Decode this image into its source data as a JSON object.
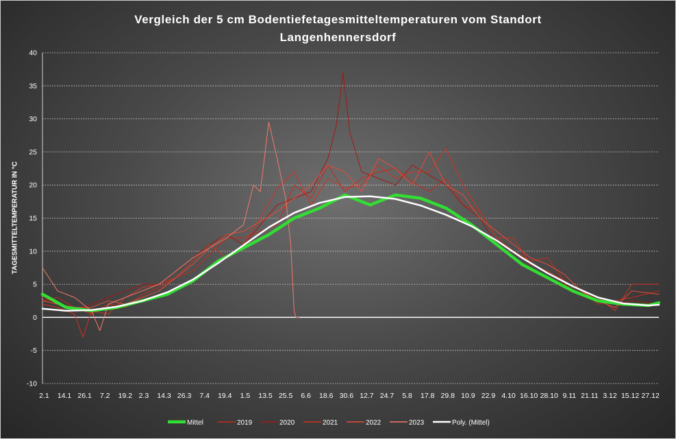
{
  "chart_data": {
    "type": "line",
    "title": "Vergleich der 5 cm Bodentiefetagesmitteltemperaturen vom Standort Langenhennersdorf",
    "title_lines": [
      "Vergleich der 5 cm Bodentiefetagesmitteltemperaturen vom Standort",
      "Langenhennersdorf"
    ],
    "ylabel": "TAGESMITTELTEMPERATUR IN °C",
    "xlabel": "",
    "ylim": [
      -10,
      40
    ],
    "yticks": [
      "-10",
      "-5",
      "0",
      "5",
      "10",
      "15",
      "20",
      "25",
      "30",
      "35",
      "40"
    ],
    "x_tick_labels": [
      "2.1",
      "14.1",
      "26.1",
      "7.2",
      "19.2",
      "2.3",
      "14.3",
      "26.3",
      "7.4",
      "19.4",
      "1.5",
      "13.5",
      "25.5",
      "6.6",
      "18.6",
      "30.6",
      "12.7",
      "24.7",
      "5.8",
      "17.8",
      "29.8",
      "10.9",
      "22.9",
      "4.10",
      "16.10",
      "28.10",
      "9.11",
      "21.11",
      "3.12",
      "15.12",
      "27.12"
    ],
    "x_tick_days": [
      2,
      14,
      26,
      38,
      50,
      61,
      73,
      85,
      97,
      109,
      121,
      133,
      145,
      157,
      169,
      181,
      193,
      205,
      217,
      229,
      241,
      253,
      265,
      277,
      289,
      301,
      313,
      325,
      337,
      349,
      361
    ],
    "xlim": [
      1,
      366
    ],
    "grid": true,
    "legend_position": "bottom",
    "series": [
      {
        "name": "Mittel",
        "color": "#33dd33",
        "width": 4.5,
        "x": [
          1,
          15,
          30,
          45,
          60,
          75,
          90,
          105,
          120,
          135,
          150,
          165,
          180,
          195,
          210,
          225,
          240,
          255,
          270,
          285,
          300,
          315,
          330,
          345,
          360,
          366
        ],
        "values": [
          3.5,
          1.5,
          1.0,
          1.5,
          2.5,
          3.5,
          5.5,
          8.5,
          10.5,
          12.5,
          15,
          16.5,
          18.5,
          17,
          18.5,
          18,
          16.5,
          14,
          11,
          8,
          6,
          4,
          2.5,
          2,
          1.8,
          2.2
        ]
      },
      {
        "name": "2019",
        "color": "#c62a1c",
        "width": 1,
        "x": [
          1,
          10,
          20,
          30,
          40,
          50,
          60,
          70,
          80,
          90,
          100,
          110,
          120,
          130,
          140,
          150,
          160,
          170,
          180,
          190,
          200,
          210,
          220,
          230,
          240,
          250,
          260,
          270,
          280,
          290,
          300,
          310,
          320,
          330,
          340,
          350,
          366
        ],
        "values": [
          2.5,
          3,
          1.5,
          0.5,
          2,
          1.5,
          3.5,
          4.5,
          6,
          7,
          9.5,
          12,
          12,
          13,
          14,
          20,
          18,
          23,
          19,
          21,
          22,
          22.5,
          20.5,
          19,
          21,
          17,
          16,
          12,
          10,
          8.5,
          9,
          5.5,
          4,
          2,
          2.5,
          3,
          4
        ]
      },
      {
        "name": "2020",
        "color": "#a31a12",
        "width": 1,
        "x": [
          1,
          10,
          20,
          30,
          40,
          50,
          60,
          70,
          80,
          90,
          100,
          110,
          120,
          130,
          140,
          150,
          160,
          170,
          175,
          179,
          183,
          190,
          200,
          210,
          220,
          230,
          240,
          250,
          260,
          270,
          280,
          290,
          300,
          310,
          320,
          330,
          340,
          350,
          366
        ],
        "values": [
          3,
          2,
          1,
          2,
          3,
          4,
          5,
          5,
          7,
          9,
          11,
          12.5,
          11,
          14,
          17,
          18,
          19,
          24,
          29,
          37,
          28,
          22,
          21,
          20,
          23,
          21.5,
          20,
          17,
          15,
          11,
          9,
          7.5,
          6,
          5,
          3.5,
          3,
          2,
          2.5,
          2
        ]
      },
      {
        "name": "2021",
        "color": "#d13222",
        "width": 1,
        "x": [
          1,
          10,
          20,
          25,
          30,
          40,
          50,
          60,
          70,
          80,
          90,
          100,
          110,
          120,
          130,
          140,
          150,
          160,
          170,
          180,
          190,
          200,
          210,
          220,
          230,
          240,
          250,
          260,
          270,
          280,
          290,
          300,
          310,
          320,
          330,
          340,
          350,
          366
        ],
        "values": [
          2,
          1.5,
          0.5,
          -3,
          1,
          0.5,
          3,
          4.5,
          5,
          6,
          8.5,
          11,
          9,
          11,
          15,
          19.5,
          22,
          17,
          21,
          19.5,
          20,
          23,
          21,
          22,
          22,
          25.5,
          20,
          16,
          12,
          12,
          8,
          7,
          5.5,
          4,
          3,
          1,
          5,
          5
        ]
      },
      {
        "name": "2022",
        "color": "#ea4a38",
        "width": 1,
        "x": [
          1,
          10,
          20,
          30,
          40,
          50,
          60,
          70,
          80,
          90,
          100,
          110,
          120,
          130,
          140,
          150,
          160,
          170,
          180,
          190,
          200,
          210,
          220,
          230,
          240,
          250,
          260,
          270,
          280,
          290,
          300,
          310,
          320,
          330,
          340,
          350,
          366
        ],
        "values": [
          2.5,
          2,
          1.5,
          1.5,
          2.5,
          2,
          3,
          4,
          6,
          8,
          10.5,
          12.5,
          13,
          14.5,
          16,
          18,
          20,
          23,
          22,
          19,
          24,
          22.5,
          20,
          25,
          20,
          18.5,
          15,
          13,
          11,
          9,
          8,
          6.5,
          4,
          2.5,
          1.5,
          4,
          3.5
        ]
      },
      {
        "name": "2023",
        "color": "#f47a6a",
        "width": 1,
        "x": [
          1,
          10,
          20,
          30,
          35,
          40,
          50,
          60,
          70,
          80,
          90,
          100,
          110,
          120,
          126,
          130,
          135,
          140,
          145,
          148,
          150,
          151,
          153
        ],
        "values": [
          7.5,
          4,
          3,
          1,
          -2,
          2,
          3,
          4,
          5,
          7,
          9,
          10.5,
          12,
          14,
          20,
          19,
          29.5,
          24,
          18,
          11,
          1,
          0,
          0
        ]
      },
      {
        "name": "Poly. (Mittel)",
        "color": "#ffffff",
        "width": 2.5,
        "x": [
          1,
          15,
          30,
          45,
          60,
          75,
          90,
          105,
          120,
          135,
          150,
          165,
          180,
          195,
          210,
          225,
          240,
          255,
          270,
          285,
          300,
          315,
          330,
          345,
          360,
          366
        ],
        "values": [
          1.3,
          1.0,
          1.1,
          1.6,
          2.5,
          3.8,
          5.7,
          8.2,
          10.9,
          13.6,
          15.8,
          17.3,
          18.2,
          18.3,
          17.9,
          16.9,
          15.5,
          13.8,
          11.6,
          9.0,
          6.7,
          4.7,
          3.0,
          2.1,
          1.8,
          1.9
        ]
      }
    ]
  }
}
